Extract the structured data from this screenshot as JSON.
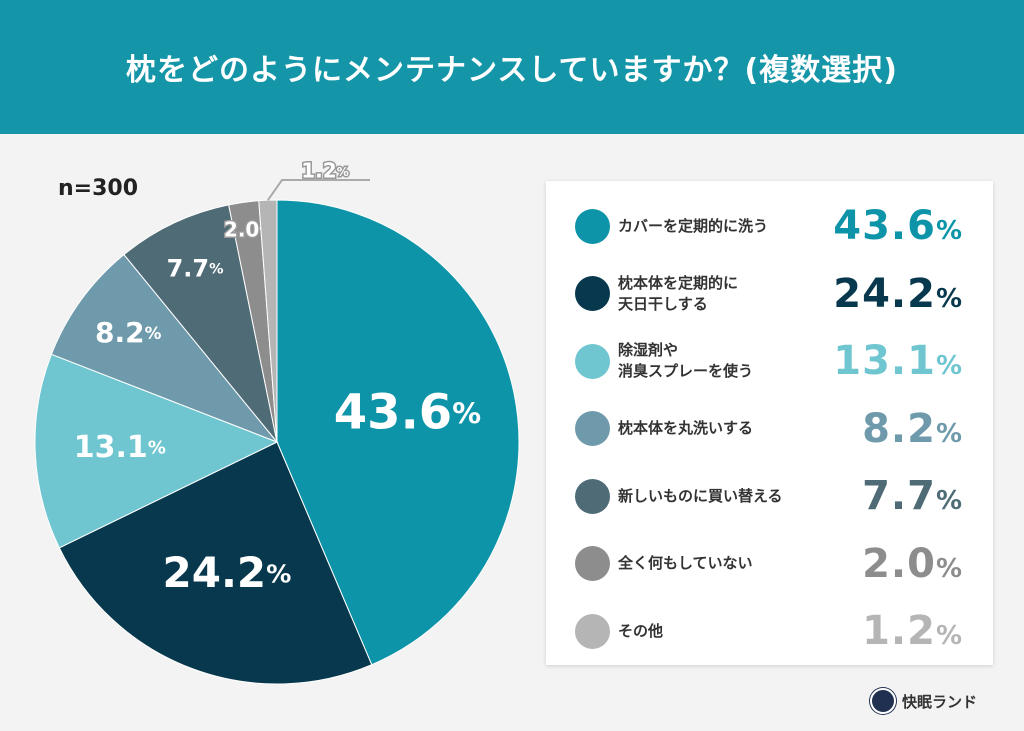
{
  "header": {
    "title": "枕をどのようにメンテナンスしていますか？(複数選択)"
  },
  "sample": "n=300",
  "brand": "快眠ランド",
  "chart_data": {
    "type": "pie",
    "title": "枕をどのようにメンテナンスしていますか？(複数選択)",
    "unit": "%",
    "categories": [
      "カバーを定期的に洗う",
      "枕本体を定期的に天日干しする",
      "除湿剤や消臭スプレーを使う",
      "枕本体を丸洗いする",
      "新しいものに買い替える",
      "全く何もしていない",
      "その他"
    ],
    "values": [
      43.6,
      24.2,
      13.1,
      8.2,
      7.7,
      2.0,
      1.2
    ],
    "colors": [
      "#0e94a8",
      "#07384d",
      "#6fc6d0",
      "#6e9aab",
      "#4f6b76",
      "#8d8d8d",
      "#b5b5b5"
    ],
    "value_labels": [
      "43.6",
      "24.2",
      "13.1",
      "8.2",
      "7.7",
      "2.0",
      "1.2"
    ],
    "legend_placement": "right",
    "legend_lines": [
      [
        "カバーを定期的に洗う"
      ],
      [
        "枕本体を定期的に",
        "天日干しする"
      ],
      [
        "除湿剤や",
        "消臭スプレーを使う"
      ],
      [
        "枕本体を丸洗いする"
      ],
      [
        "新しいものに買い替える"
      ],
      [
        "全く何もしていない"
      ],
      [
        "その他"
      ]
    ]
  }
}
